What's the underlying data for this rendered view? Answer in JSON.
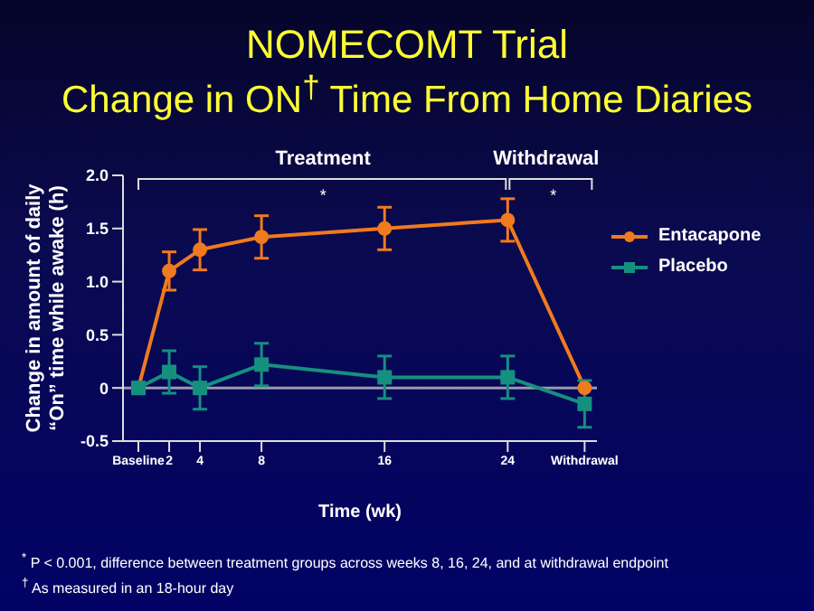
{
  "chart_data": {
    "type": "line",
    "title": "NOMECOMT Trial",
    "subtitle": "Change in ON$^{†}$ Time From Home Diaries",
    "xlabel": "Time (wk)",
    "ylabel": "Change in amount of daily\n“On” time while awake (h)",
    "x": [
      0,
      2,
      4,
      8,
      16,
      24,
      29
    ],
    "xlim": [
      -1,
      29.8
    ],
    "xticks": [
      {
        "value": 0,
        "label": "Baseline"
      },
      2,
      4,
      8,
      16,
      24,
      {
        "value": 29,
        "label": "Withdrawal"
      }
    ],
    "ylim": [
      -0.5,
      2.0
    ],
    "yticks": [
      -0.5,
      0,
      0.5,
      {
        "value": 1,
        "label": "1.0"
      },
      1.5,
      {
        "value": 2,
        "label": "2.0"
      }
    ],
    "series": [
      {
        "name": "Entacapone",
        "color": "#f07a1e",
        "marker": "circle",
        "values": [
          0,
          1.1,
          1.3,
          1.42,
          1.5,
          1.58,
          0
        ],
        "errors": [
          null,
          0.18,
          0.19,
          0.2,
          0.2,
          0.2,
          null
        ]
      },
      {
        "name": "Placebo",
        "color": "#15907f",
        "marker": "square",
        "values": [
          0,
          0.15,
          0,
          0.22,
          0.1,
          0.1,
          -0.15
        ],
        "errors": [
          null,
          0.2,
          0.2,
          0.2,
          0.2,
          0.2,
          0.22
        ]
      }
    ],
    "ref_lines": [
      {
        "axis": "y",
        "value": 0,
        "color": "#9a9aa8"
      }
    ],
    "grid": false,
    "legend": "right",
    "line_style": "solid",
    "annotations": [
      "Treatment",
      "*",
      "Withdrawal",
      "*",
      "$^{*}$ P < 0.001, difference between treatment groups across weeks 8, 16, 24, and at withdrawal endpoint",
      "$^{†}$ As measured in an 18-hour day"
    ]
  }
}
